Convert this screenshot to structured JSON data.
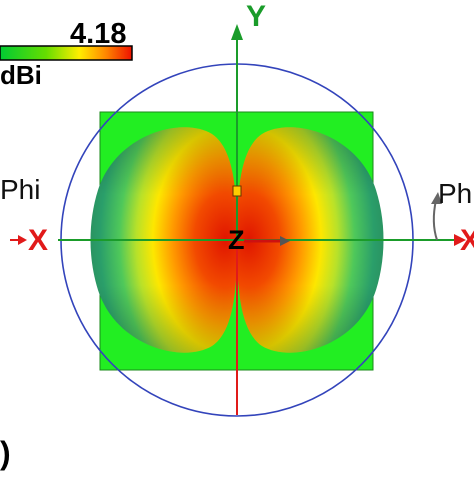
{
  "legend": {
    "max_value": "4.18",
    "unit": "dBi",
    "gradient_colors": [
      "#00cc33",
      "#66dd00",
      "#ffee00",
      "#ff8800",
      "#ee1100"
    ]
  },
  "axes": {
    "y_label": "Y",
    "x_label": "X",
    "z_label": "Z",
    "phi_label": "Phi",
    "phi_label_right": "Phi"
  },
  "corner_text": ")",
  "colors": {
    "background_square": "#22ee22",
    "circle": "#3344bb",
    "x_axis": "#e11a1a",
    "y_axis": "#1a9c2a",
    "lobe_outer": "#2a9e55",
    "lobe_inner": "#ee2200"
  }
}
